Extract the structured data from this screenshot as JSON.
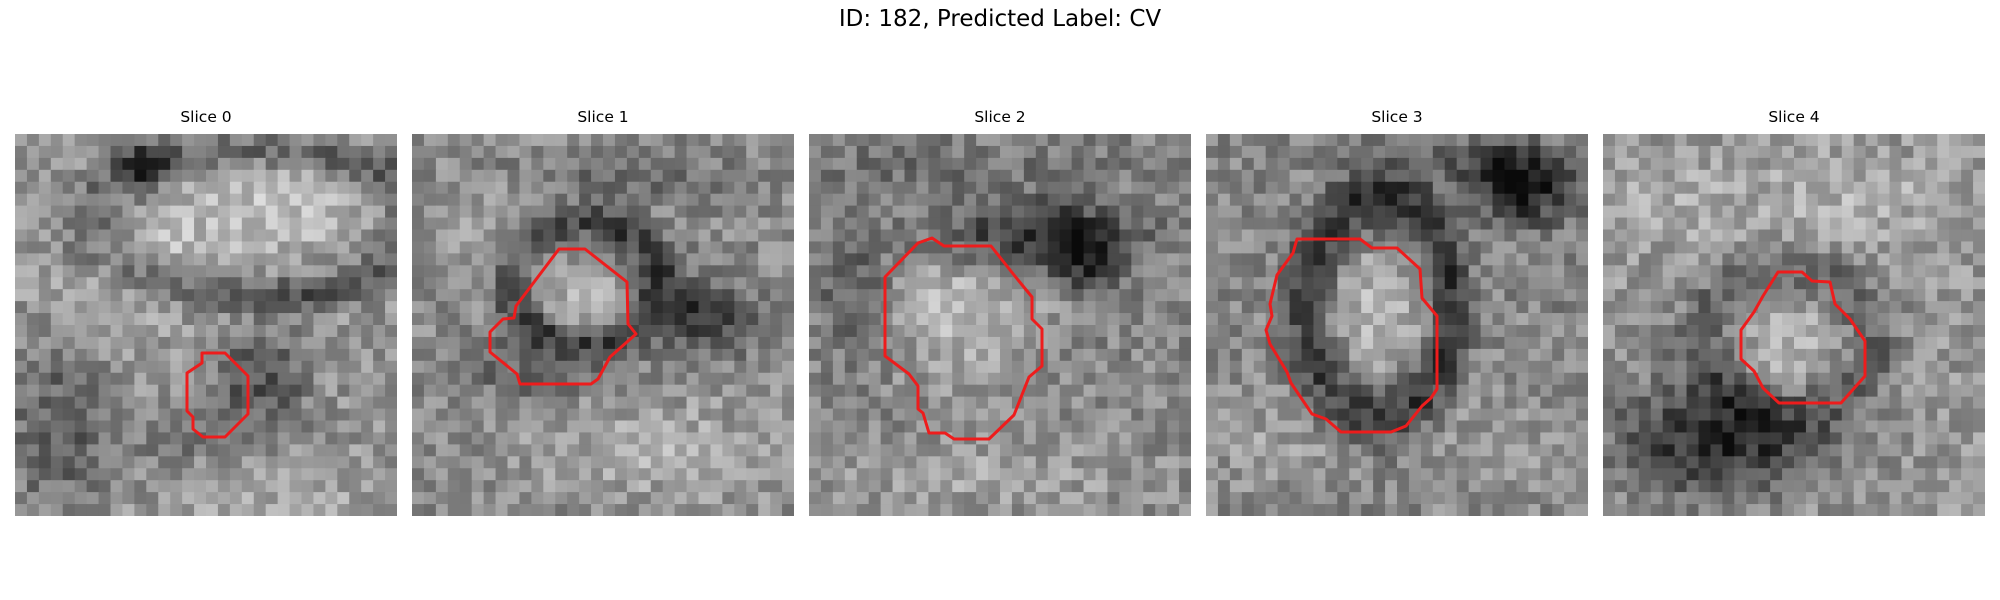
{
  "figure": {
    "title": "ID: 182, Predicted Label: CV",
    "contour_color": "#ee1c1c"
  },
  "panels": [
    {
      "title": "Slice 0",
      "image": "grayscale-patch",
      "overlay": "contour"
    },
    {
      "title": "Slice 1",
      "image": "grayscale-patch",
      "overlay": "contour"
    },
    {
      "title": "Slice 2",
      "image": "grayscale-patch",
      "overlay": "contour"
    },
    {
      "title": "Slice 3",
      "image": "grayscale-patch",
      "overlay": "contour"
    },
    {
      "title": "Slice 4",
      "image": "grayscale-patch",
      "overlay": "contour"
    }
  ]
}
